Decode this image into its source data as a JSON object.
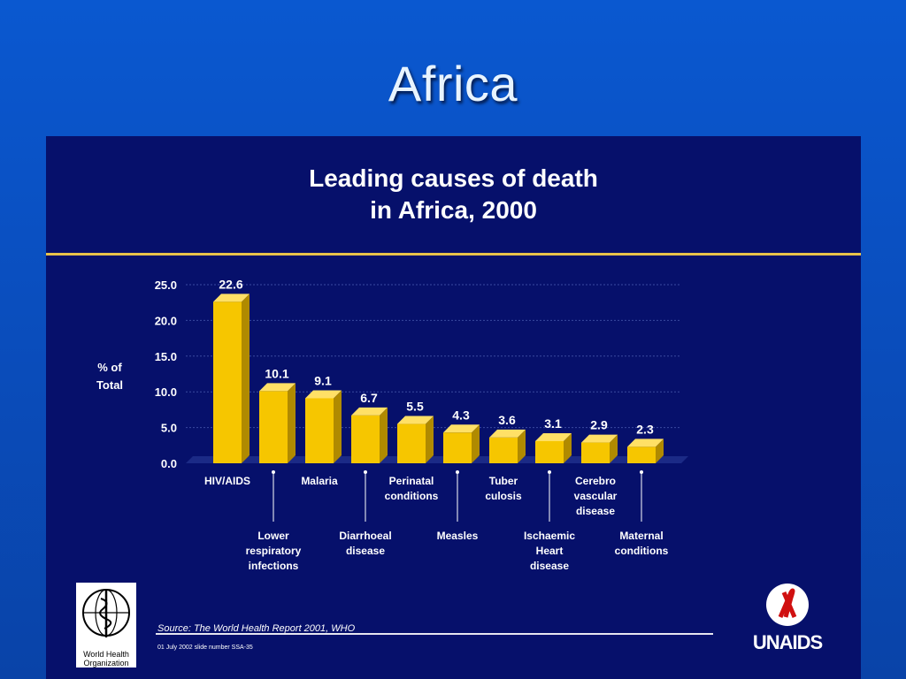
{
  "slide": {
    "title": "Africa"
  },
  "panel": {
    "chart_title_line1": "Leading causes of death",
    "chart_title_line2": "in Africa, 2000",
    "source": "Source: The World Health Report 2001, WHO",
    "dateline": "01 July 2002 slide number SSA-35",
    "who_logo_text": "World Health Organization",
    "unaids_logo_text": "UNAIDS"
  },
  "chart_data": {
    "type": "bar",
    "ylabel": "% of Total",
    "ylim": [
      0,
      25
    ],
    "yticks": [
      "0.0",
      "5.0",
      "10.0",
      "15.0",
      "20.0",
      "25.0"
    ],
    "grid": true,
    "categories": [
      "HIV/AIDS",
      "Lower respiratory infections",
      "Malaria",
      "Diarrhoeal disease",
      "Perinatal conditions",
      "Measles",
      "Tuber culosis",
      "Ischaemic Heart disease",
      "Cerebro vascular disease",
      "Maternal conditions"
    ],
    "category_lines": [
      [
        "HIV/AIDS"
      ],
      [
        "Lower",
        "respiratory",
        "infections"
      ],
      [
        "Malaria"
      ],
      [
        "Diarrhoeal",
        "disease"
      ],
      [
        "Perinatal",
        "conditions"
      ],
      [
        "Measles"
      ],
      [
        "Tuber",
        "culosis"
      ],
      [
        "Ischaemic",
        "Heart",
        "disease"
      ],
      [
        "Cerebro",
        "vascular",
        "disease"
      ],
      [
        "Maternal",
        "conditions"
      ]
    ],
    "values": [
      22.6,
      10.1,
      9.1,
      6.7,
      5.5,
      4.3,
      3.6,
      3.1,
      2.9,
      2.3
    ],
    "value_labels": [
      "22.6",
      "10.1",
      "9.1",
      "6.7",
      "5.5",
      "4.3",
      "3.6",
      "3.1",
      "2.9",
      "2.3"
    ],
    "bar_color": "#f6c600"
  }
}
